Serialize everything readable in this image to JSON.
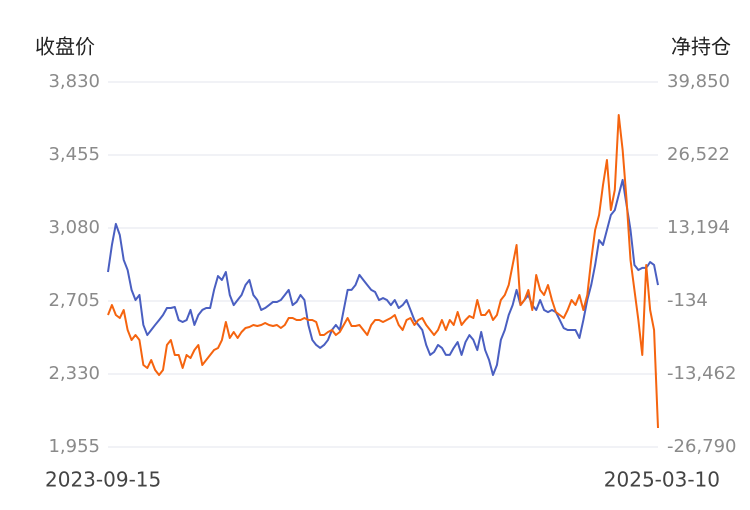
{
  "chart_data": {
    "type": "line",
    "y_label": "收盘价",
    "y2_label": "净持仓",
    "categories": [
      "2023-09-15",
      null,
      null,
      null,
      null,
      null,
      null,
      null,
      null,
      null,
      null,
      null,
      null,
      null,
      null,
      null,
      null,
      null,
      null,
      null,
      null,
      null,
      null,
      null,
      null,
      null,
      null,
      null,
      null,
      null,
      null,
      null,
      null,
      null,
      null,
      null,
      null,
      null,
      null,
      null,
      null,
      null,
      null,
      null,
      null,
      null,
      null,
      null,
      null,
      null,
      null,
      null,
      null,
      null,
      null,
      null,
      null,
      null,
      null,
      null,
      null,
      null,
      null,
      null,
      null,
      null,
      null,
      null,
      null,
      null,
      null,
      null,
      null,
      null,
      null,
      null,
      null,
      null,
      null,
      null,
      null,
      null,
      null,
      null,
      null,
      null,
      null,
      null,
      null,
      null,
      null,
      null,
      null,
      null,
      null,
      null,
      null,
      null,
      null,
      null,
      null,
      null,
      null,
      null,
      null,
      null,
      null,
      null,
      null,
      null,
      null,
      null,
      null,
      null,
      null,
      null,
      null,
      null,
      null,
      null,
      null,
      null,
      null,
      null,
      null,
      null,
      null,
      null,
      null,
      null,
      null,
      null,
      null,
      null,
      null,
      null,
      null,
      null,
      null,
      null,
      "2025-03-10"
    ],
    "series": [
      {
        "color": "#4a5fc1",
        "values": [
          2854,
          2993,
          3101,
          3044,
          2916,
          2864,
          2762,
          2710,
          2736,
          2582,
          2530,
          2556,
          2582,
          2607,
          2633,
          2669,
          2669,
          2674,
          2607,
          2597,
          2607,
          2659,
          2582,
          2633,
          2659,
          2669,
          2669,
          2762,
          2833,
          2813,
          2854,
          2736,
          2684,
          2710,
          2736,
          2787,
          2813,
          2736,
          2710,
          2659,
          2669,
          2684,
          2700,
          2700,
          2710,
          2736,
          2762,
          2684,
          2700,
          2736,
          2710,
          2582,
          2505,
          2479,
          2464,
          2479,
          2505,
          2556,
          2582,
          2556,
          2659,
          2762,
          2762,
          2787,
          2839,
          2813,
          2787,
          2762,
          2751,
          2710,
          2720,
          2710,
          2684,
          2710,
          2669,
          2684,
          2710,
          2659,
          2607,
          2582,
          2556,
          2479,
          2428,
          2443,
          2479,
          2464,
          2428,
          2428,
          2464,
          2494,
          2428,
          2494,
          2530,
          2505,
          2453,
          2546,
          2453,
          2402,
          2325,
          2376,
          2505,
          2556,
          2633,
          2684,
          2762,
          2684,
          2710,
          2736,
          2684,
          2659,
          2710,
          2659,
          2648,
          2659,
          2648,
          2607,
          2566,
          2556,
          2556,
          2556,
          2515,
          2607,
          2710,
          2787,
          2890,
          3018,
          2993,
          3070,
          3147,
          3172,
          3250,
          3327,
          3198,
          3070,
          2890,
          2864,
          2875,
          2875,
          2905,
          2890,
          2787
        ]
      },
      {
        "color": "#f5640f",
        "axis": "y2",
        "values": [
          -2691,
          -865,
          -2691,
          -3239,
          -1778,
          -5430,
          -7256,
          -6343,
          -7256,
          -11820,
          -12368,
          -10907,
          -12733,
          -13646,
          -12733,
          -8169,
          -7256,
          -9994,
          -9994,
          -12368,
          -9994,
          -10542,
          -9081,
          -8169,
          -11820,
          -10907,
          -9994,
          -9081,
          -8716,
          -7256,
          -3969,
          -6890,
          -5795,
          -6890,
          -5795,
          -5065,
          -4882,
          -4517,
          -4700,
          -4517,
          -4152,
          -4517,
          -4700,
          -4517,
          -5065,
          -4517,
          -3239,
          -3239,
          -3604,
          -3604,
          -3239,
          -3604,
          -3604,
          -3969,
          -6343,
          -6343,
          -5795,
          -5430,
          -6343,
          -5795,
          -4517,
          -3239,
          -4700,
          -4700,
          -4517,
          -5430,
          -6343,
          -4517,
          -3604,
          -3604,
          -3969,
          -3604,
          -3239,
          -2691,
          -4517,
          -5430,
          -3604,
          -3239,
          -4517,
          -3604,
          -3239,
          -4517,
          -5430,
          -6343,
          -5430,
          -3604,
          -5430,
          -3604,
          -4517,
          -2143,
          -4517,
          -3604,
          -2874,
          -3239,
          48,
          -2691,
          -2691,
          -1778,
          -3604,
          -2691,
          48,
          960,
          2786,
          6438,
          10089,
          -865,
          48,
          1873,
          -1778,
          4612,
          1873,
          960,
          2786,
          48,
          -2143,
          -2691,
          -3239,
          -1778,
          48,
          -865,
          960,
          -1778,
          960,
          7351,
          12828,
          15567,
          21044,
          25609,
          16480,
          20131,
          33825,
          27435,
          18306,
          7351,
          1873,
          -3604,
          -9994,
          6438,
          -1778,
          -5430,
          -23323
        ]
      }
    ],
    "ylim": [
      1955,
      3830
    ],
    "yticks": [
      {
        "value": 1955,
        "label": "1,955"
      },
      {
        "value": 2330,
        "label": "2,330"
      },
      {
        "value": 2705,
        "label": "2,705"
      },
      {
        "value": 3080,
        "label": "3,080"
      },
      {
        "value": 3455,
        "label": "3,455"
      },
      {
        "value": 3830,
        "label": "3,830"
      }
    ],
    "y2lim": [
      -26790,
      39850
    ],
    "y2ticks": [
      {
        "value": -26790,
        "label": "-26,790"
      },
      {
        "value": -13462,
        "label": "-13,462"
      },
      -134,
      {
        "value": 13194,
        "label": "13,194"
      },
      {
        "value": 26522,
        "label": "26,522"
      },
      {
        "value": 39850,
        "label": "39,850"
      }
    ],
    "grid": true
  }
}
